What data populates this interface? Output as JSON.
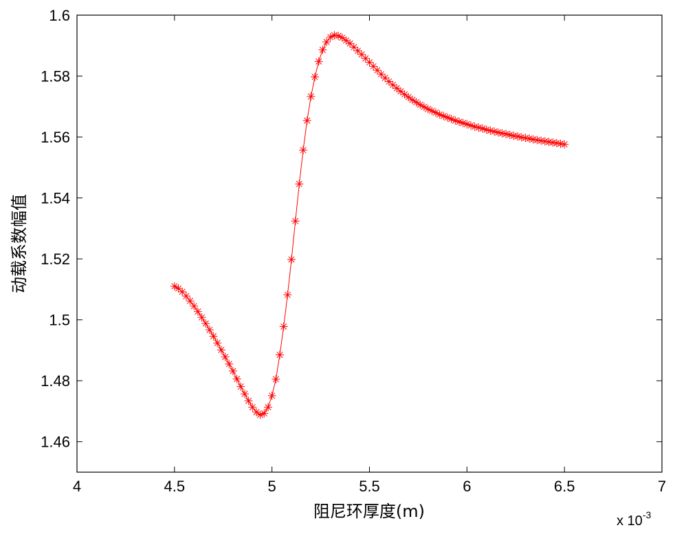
{
  "chart_data": {
    "type": "line",
    "xlabel": "阻尼环厚度(m)",
    "ylabel": "动载系数幅值",
    "x_exponent_label": "x 10",
    "x_exponent_power": "-3",
    "xlim": [
      4,
      7
    ],
    "ylim": [
      1.45,
      1.6
    ],
    "x_ticks": [
      4,
      4.5,
      5,
      5.5,
      6,
      6.5,
      7
    ],
    "x_tick_labels": [
      "4",
      "4.5",
      "5",
      "5.5",
      "6",
      "6.5",
      "7"
    ],
    "y_ticks": [
      1.46,
      1.48,
      1.5,
      1.52,
      1.54,
      1.56,
      1.58,
      1.6
    ],
    "y_tick_labels": [
      "1.46",
      "1.48",
      "1.5",
      "1.52",
      "1.54",
      "1.56",
      "1.58",
      "1.6"
    ],
    "grid": false,
    "series": [
      {
        "color": "#ff0000",
        "marker": "asterisk",
        "points": [
          [
            4.5,
            1.511
          ],
          [
            4.52,
            1.5103
          ],
          [
            4.54,
            1.5092
          ],
          [
            4.56,
            1.5078
          ],
          [
            4.58,
            1.5062
          ],
          [
            4.6,
            1.5045
          ],
          [
            4.62,
            1.5027
          ],
          [
            4.64,
            1.5008
          ],
          [
            4.66,
            1.4988
          ],
          [
            4.68,
            1.4967
          ],
          [
            4.7,
            1.4946
          ],
          [
            4.72,
            1.4924
          ],
          [
            4.74,
            1.4901
          ],
          [
            4.76,
            1.4878
          ],
          [
            4.78,
            1.4855
          ],
          [
            4.8,
            1.4832
          ],
          [
            4.82,
            1.4806
          ],
          [
            4.84,
            1.4781
          ],
          [
            4.86,
            1.4757
          ],
          [
            4.88,
            1.4734
          ],
          [
            4.9,
            1.4713
          ],
          [
            4.92,
            1.4697
          ],
          [
            4.94,
            1.4688
          ],
          [
            4.96,
            1.4693
          ],
          [
            4.98,
            1.4713
          ],
          [
            5.0,
            1.4751
          ],
          [
            5.02,
            1.4805
          ],
          [
            5.04,
            1.4885
          ],
          [
            5.06,
            1.4978
          ],
          [
            5.08,
            1.5082
          ],
          [
            5.1,
            1.5198
          ],
          [
            5.12,
            1.5324
          ],
          [
            5.14,
            1.5446
          ],
          [
            5.16,
            1.5557
          ],
          [
            5.18,
            1.5654
          ],
          [
            5.2,
            1.5733
          ],
          [
            5.22,
            1.5797
          ],
          [
            5.24,
            1.5848
          ],
          [
            5.26,
            1.5886
          ],
          [
            5.28,
            1.5912
          ],
          [
            5.3,
            1.5928
          ],
          [
            5.32,
            1.5934
          ],
          [
            5.34,
            1.5932
          ],
          [
            5.36,
            1.5926
          ],
          [
            5.38,
            1.5917
          ],
          [
            5.4,
            1.5907
          ],
          [
            5.42,
            1.5895
          ],
          [
            5.44,
            1.5883
          ],
          [
            5.46,
            1.5871
          ],
          [
            5.48,
            1.5858
          ],
          [
            5.5,
            1.5845
          ],
          [
            5.52,
            1.5832
          ],
          [
            5.54,
            1.5819
          ],
          [
            5.56,
            1.5806
          ],
          [
            5.58,
            1.5794
          ],
          [
            5.6,
            1.5782
          ],
          [
            5.62,
            1.5771
          ],
          [
            5.64,
            1.576
          ],
          [
            5.66,
            1.575
          ],
          [
            5.68,
            1.574
          ],
          [
            5.7,
            1.5731
          ],
          [
            5.72,
            1.5722
          ],
          [
            5.74,
            1.5714
          ],
          [
            5.76,
            1.5706
          ],
          [
            5.78,
            1.5699
          ],
          [
            5.8,
            1.5692
          ],
          [
            5.82,
            1.5686
          ],
          [
            5.84,
            1.568
          ],
          [
            5.86,
            1.5674
          ],
          [
            5.88,
            1.5669
          ],
          [
            5.9,
            1.5664
          ],
          [
            5.92,
            1.5659
          ],
          [
            5.94,
            1.5654
          ],
          [
            5.96,
            1.565
          ],
          [
            5.98,
            1.5646
          ],
          [
            6.0,
            1.5642
          ],
          [
            6.02,
            1.5638
          ],
          [
            6.04,
            1.5634
          ],
          [
            6.06,
            1.5631
          ],
          [
            6.08,
            1.5628
          ],
          [
            6.1,
            1.5624
          ],
          [
            6.12,
            1.5621
          ],
          [
            6.14,
            1.5618
          ],
          [
            6.16,
            1.5615
          ],
          [
            6.18,
            1.5612
          ],
          [
            6.2,
            1.561
          ],
          [
            6.22,
            1.5607
          ],
          [
            6.24,
            1.5604
          ],
          [
            6.26,
            1.5602
          ],
          [
            6.28,
            1.5599
          ],
          [
            6.3,
            1.5597
          ],
          [
            6.32,
            1.5595
          ],
          [
            6.34,
            1.5592
          ],
          [
            6.36,
            1.559
          ],
          [
            6.38,
            1.5588
          ],
          [
            6.4,
            1.5586
          ],
          [
            6.42,
            1.5584
          ],
          [
            6.44,
            1.5582
          ],
          [
            6.46,
            1.558
          ],
          [
            6.48,
            1.5578
          ],
          [
            6.5,
            1.5576
          ]
        ]
      }
    ]
  }
}
